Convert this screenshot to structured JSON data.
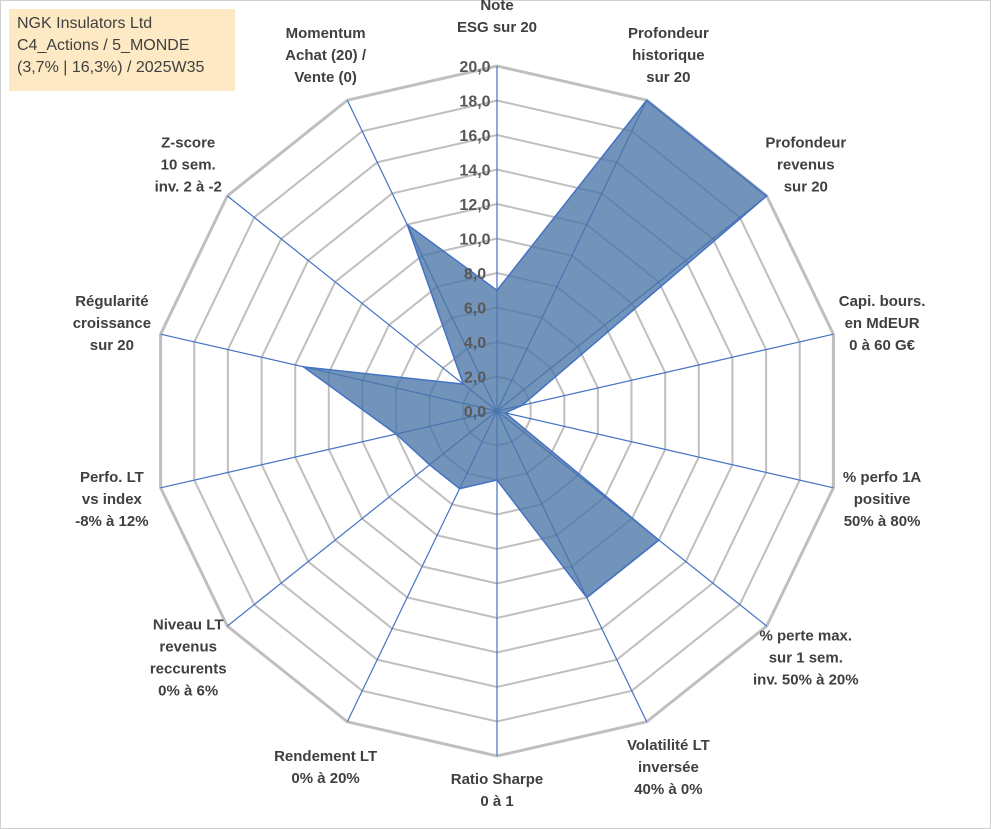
{
  "info_box": {
    "line1": "NGK Insulators Ltd",
    "line2": "C4_Actions / 5_MONDE",
    "line3": "(3,7% | 16,3%) / 2025W35"
  },
  "colors": {
    "grid": "#bfbfbf",
    "spoke": "#4472c4",
    "fill": "#4a76a8",
    "outline": "#4472c4",
    "info_bg": "#fde9c4"
  },
  "chart_data": {
    "type": "radar",
    "rlim": [
      0,
      20
    ],
    "tick_step": 2,
    "tick_labels": [
      "0,0",
      "2,0",
      "4,0",
      "6,0",
      "8,0",
      "10,0",
      "12,0",
      "14,0",
      "16,0",
      "18,0",
      "20,0"
    ],
    "grid": true,
    "axes": [
      {
        "label": [
          "Note",
          "ESG sur 20"
        ],
        "value": 7.0
      },
      {
        "label": [
          "Profondeur",
          "historique",
          "sur 20"
        ],
        "value": 20.0
      },
      {
        "label": [
          "Profondeur",
          "revenus",
          "sur 20"
        ],
        "value": 20.0
      },
      {
        "label": [
          "Capi. bours.",
          "en MdEUR",
          "0 à 60 G€"
        ],
        "value": 1.5
      },
      {
        "label": [
          "% perfo 1A",
          "positive",
          "50% à 80%"
        ],
        "value": 0.5
      },
      {
        "label": [
          "% perte max.",
          "sur 1 sem.",
          "inv. 50% à 20%"
        ],
        "value": 12.0
      },
      {
        "label": [
          "Volatilité LT",
          "inversée",
          "40% à 0%"
        ],
        "value": 12.0
      },
      {
        "label": [
          "Ratio Sharpe",
          "0 à 1"
        ],
        "value": 4.0
      },
      {
        "label": [
          "Rendement LT",
          "0% à 20%"
        ],
        "value": 5.0
      },
      {
        "label": [
          "Niveau LT",
          "revenus",
          "reccurents",
          "0% à 6%"
        ],
        "value": 5.0
      },
      {
        "label": [
          "Perfo. LT",
          "vs index",
          "-8% à 12%"
        ],
        "value": 6.0
      },
      {
        "label": [
          "Régularité",
          "croissance",
          "sur 20"
        ],
        "value": 11.5
      },
      {
        "label": [
          "Z-score",
          "10 sem.",
          "inv. 2 à -2"
        ],
        "value": 2.5
      },
      {
        "label": [
          "Momentum",
          "Achat (20) /",
          "Vente (0)"
        ],
        "value": 12.0
      }
    ]
  }
}
